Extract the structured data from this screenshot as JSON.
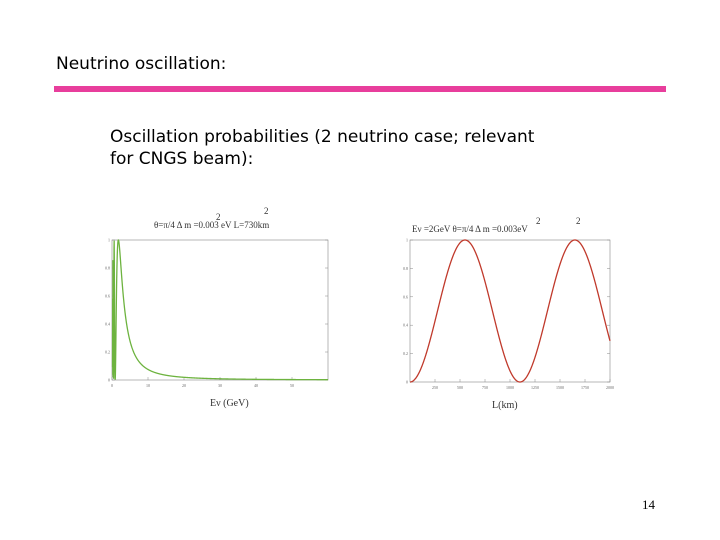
{
  "slide": {
    "title": "Neutrino oscillation:",
    "subtitle_line1": "Oscillation probabilities (2 neutrino case; relevant",
    "subtitle_line2": "for CNGS beam):",
    "page_number": "14",
    "accent_color": "#e83e9c"
  },
  "chart_data": [
    {
      "type": "line",
      "title": "θ=π/4   Δ m =0.003 eV   L=730km",
      "title_superscripts": [
        "2",
        "2"
      ],
      "xlabel": "Eν (GeV)",
      "ylabel": "",
      "xlim": [
        0,
        60
      ],
      "ylim": [
        0,
        1
      ],
      "x_tick_labels": [
        "0",
        "10",
        "20",
        "30",
        "40",
        "50"
      ],
      "y_tick_labels": [
        "0",
        "0.2",
        "0.4",
        "0.6",
        "0.8",
        "1"
      ],
      "color": "#6db33f",
      "formula": "P = sin^2(1.27 * 0.003 * 730 / E)",
      "dm2_eV2": 0.003,
      "L_km": 730,
      "grid": false
    },
    {
      "type": "line",
      "title": "Eν =2GeV   θ=π/4   Δ m =0.003eV",
      "title_superscripts": [
        "2",
        "2"
      ],
      "xlabel": "L(km)",
      "ylabel": "",
      "xlim": [
        0,
        3000
      ],
      "ylim": [
        0,
        1
      ],
      "x_tick_labels": [
        "250",
        "500",
        "750",
        "1000",
        "1250",
        "1500",
        "1750",
        "2000"
      ],
      "y_tick_labels": [
        "0",
        "0.2",
        "0.4",
        "0.6",
        "0.8",
        "1"
      ],
      "color": "#c0392b",
      "formula": "P = sin^2(1.27 * 0.003 * L / 2)",
      "dm2_eV2": 0.003,
      "E_GeV": 2,
      "grid": false
    }
  ]
}
